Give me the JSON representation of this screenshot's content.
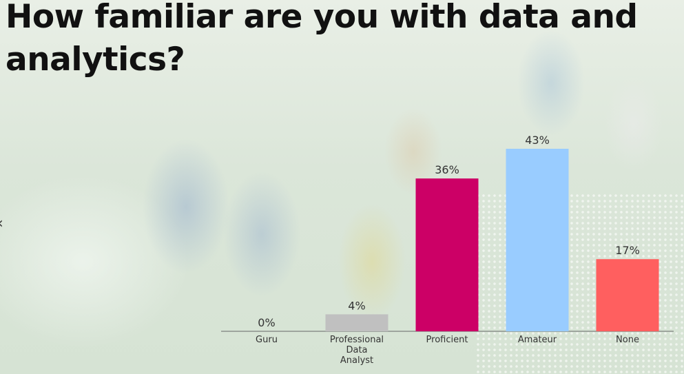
{
  "title": "How familiar are you with data and analytics?",
  "edge_glyph": "‹",
  "chart_data": {
    "type": "bar",
    "title": "How familiar are you with data and analytics?",
    "categories": [
      "Guru",
      "Professional Data Analyst",
      "Proficient",
      "Amateur",
      "None"
    ],
    "category_lines": [
      [
        "Guru"
      ],
      [
        "Professional",
        "Data",
        "Analyst"
      ],
      [
        "Proficient"
      ],
      [
        "Amateur"
      ],
      [
        "None"
      ]
    ],
    "values": [
      0,
      4,
      36,
      43,
      17
    ],
    "value_labels": [
      "0%",
      "4%",
      "36%",
      "43%",
      "17%"
    ],
    "colors": [
      "#c0c0c0",
      "#c0c0c0",
      "#cc0066",
      "#99ccff",
      "#ff5f5f"
    ],
    "unit": "%",
    "ylim": [
      0,
      43
    ],
    "xlabel": "",
    "ylabel": "",
    "grid": false,
    "legend": "none"
  }
}
